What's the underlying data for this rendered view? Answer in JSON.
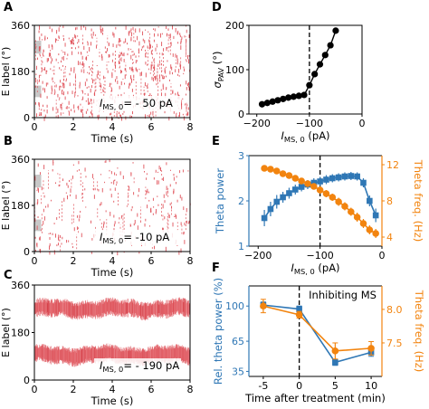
{
  "panel_letters": [
    "A",
    "B",
    "C",
    "D",
    "E",
    "F"
  ],
  "colors": {
    "raster_red": "#e0525a",
    "raster_dense_red": "#d0303a",
    "stim_grey": "#c8c8c8",
    "black": "#000000",
    "blue": "#2f77b5",
    "orange": "#f2840f"
  },
  "chart_data": [
    {
      "panel": "A",
      "type": "scatter",
      "subtype": "spike-raster",
      "xlabel": "Time (s)",
      "ylabel": "E label (°)",
      "xlim": [
        0,
        8
      ],
      "ylim": [
        0,
        360
      ],
      "xticks": [
        "0",
        "2",
        "4",
        "6",
        "8"
      ],
      "yticks": [
        "0",
        "180",
        "360"
      ],
      "annotation": {
        "base": "I",
        "sub": "MS, 0",
        "rest": "= - 50 pA"
      },
      "stimulus_patches": [
        [
          0.0,
          0.35,
          80,
          125
        ],
        [
          0.0,
          0.35,
          250,
          300
        ]
      ]
    },
    {
      "panel": "B",
      "type": "scatter",
      "subtype": "spike-raster",
      "xlabel": "Time (s)",
      "ylabel": "E label (°)",
      "xlim": [
        0,
        8
      ],
      "ylim": [
        0,
        360
      ],
      "xticks": [
        "0",
        "2",
        "4",
        "6",
        "8"
      ],
      "yticks": [
        "0",
        "180",
        "360"
      ],
      "annotation": {
        "base": "I",
        "sub": "MS, 0",
        "rest": "= -10 pA"
      },
      "stimulus_patches": [
        [
          0.0,
          0.35,
          80,
          125
        ],
        [
          0.0,
          0.35,
          250,
          300
        ]
      ]
    },
    {
      "panel": "C",
      "type": "scatter",
      "subtype": "spike-raster",
      "xlabel": "Time (s)",
      "ylabel": "E label (°)",
      "xlim": [
        0,
        8
      ],
      "ylim": [
        0,
        360
      ],
      "xticks": [
        "0",
        "2",
        "4",
        "6",
        "8"
      ],
      "yticks": [
        "0",
        "180",
        "360"
      ],
      "annotation": {
        "base": "I",
        "sub": "MS, 0",
        "rest": "= - 190 pA"
      },
      "bands": [
        {
          "center": 270,
          "half_width": 32
        },
        {
          "center": 95,
          "half_width": 32
        }
      ]
    },
    {
      "panel": "D",
      "type": "line",
      "xlabel": {
        "base": "I",
        "sub": "MS, 0",
        "rest": " (pA)"
      },
      "ylabel": {
        "base": "σ",
        "sub": "PAV",
        "rest": " (°)"
      },
      "xlim": [
        -215,
        0
      ],
      "ylim": [
        0,
        200
      ],
      "xticks": [
        "−200",
        "−100",
        "0"
      ],
      "yticks": [
        "0",
        "100",
        "200"
      ],
      "vline_x": -100,
      "series": [
        {
          "x": [
            -190,
            -180,
            -170,
            -160,
            -150,
            -140,
            -130,
            -120,
            -110,
            -100,
            -90,
            -80,
            -70,
            -60,
            -50
          ],
          "y": [
            22,
            25,
            28,
            31,
            34,
            37,
            39,
            41,
            43,
            65,
            90,
            112,
            133,
            155,
            188
          ]
        }
      ]
    },
    {
      "panel": "E",
      "type": "line",
      "xlabel": {
        "base": "I",
        "sub": "MS, 0",
        "rest": " (pA)"
      },
      "xlim": [
        -215,
        0
      ],
      "xticks": [
        "−200",
        "−100",
        "0"
      ],
      "vline_x": -100,
      "series": [
        {
          "name": "Theta power",
          "axis": "left",
          "ylim": [
            1.0,
            3.0
          ],
          "yticks": [
            "1",
            "2",
            "3"
          ],
          "x": [
            -190,
            -180,
            -170,
            -160,
            -150,
            -140,
            -130,
            -120,
            -110,
            -100,
            -90,
            -80,
            -70,
            -60,
            -50,
            -40,
            -30,
            -20,
            -10
          ],
          "y": [
            1.62,
            1.82,
            1.98,
            2.08,
            2.17,
            2.25,
            2.31,
            2.36,
            2.4,
            2.43,
            2.47,
            2.5,
            2.52,
            2.54,
            2.55,
            2.54,
            2.4,
            2.0,
            1.68
          ],
          "err": [
            0.18,
            0.16,
            0.15,
            0.12,
            0.12,
            0.11,
            0.1,
            0.1,
            0.1,
            0.1,
            0.1,
            0.09,
            0.09,
            0.09,
            0.09,
            0.09,
            0.1,
            0.12,
            0.15
          ]
        },
        {
          "name": "Theta freq. (Hz)",
          "axis": "right",
          "ylim": [
            3.0,
            13.0
          ],
          "yticks": [
            "4",
            "8",
            "12"
          ],
          "x": [
            -190,
            -180,
            -170,
            -160,
            -150,
            -140,
            -130,
            -120,
            -110,
            -100,
            -90,
            -80,
            -70,
            -60,
            -50,
            -40,
            -30,
            -20,
            -10
          ],
          "y": [
            11.6,
            11.5,
            11.3,
            11.0,
            10.8,
            10.5,
            10.2,
            9.9,
            9.6,
            9.2,
            8.8,
            8.4,
            7.9,
            7.4,
            6.8,
            6.2,
            5.5,
            4.8,
            4.4
          ],
          "err": [
            0.3,
            0.3,
            0.3,
            0.3,
            0.3,
            0.3,
            0.3,
            0.35,
            0.35,
            0.4,
            0.4,
            0.4,
            0.45,
            0.45,
            0.45,
            0.5,
            0.5,
            0.5,
            0.5
          ]
        }
      ]
    },
    {
      "panel": "F",
      "type": "line",
      "title": "Inhibiting MS",
      "xlabel": "Time after treatment (min)",
      "xlim": [
        -7,
        11.5
      ],
      "xticks": [
        "-5",
        "0",
        "5",
        "10"
      ],
      "vline_x": 0,
      "series": [
        {
          "name": "Rel. theta power (%)",
          "axis": "left",
          "ylim": [
            30,
            120
          ],
          "yticks": [
            "35",
            "65",
            "100"
          ],
          "x": [
            -5,
            0,
            5,
            10
          ],
          "y": [
            101,
            97,
            44,
            54
          ],
          "err": [
            3,
            3,
            3,
            4
          ]
        },
        {
          "name": "Theta freq. (Hz)",
          "axis": "right",
          "ylim": [
            7.0,
            8.35
          ],
          "yticks": [
            "7.5",
            "8.0"
          ],
          "x": [
            -5,
            0,
            5,
            10
          ],
          "y": [
            8.05,
            7.92,
            7.38,
            7.42
          ],
          "err": [
            0.1,
            0.05,
            0.12,
            0.1
          ]
        }
      ]
    }
  ]
}
